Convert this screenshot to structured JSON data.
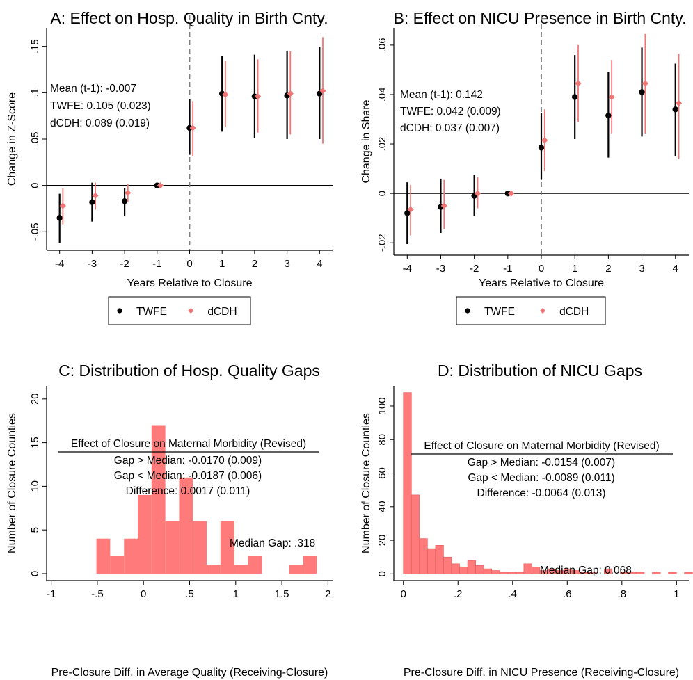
{
  "colors": {
    "twfe": "#000000",
    "dcdh": "#f07676",
    "hist_fill": "#ff7b7b",
    "hist_edge": "#e05a5a",
    "dashed": "#7f7f7f"
  },
  "chart_data": [
    {
      "panel": "A",
      "type": "scatter",
      "title": "A: Effect on Hosp. Quality in Birth Cnty.",
      "xlabel": "Years Relative to Closure",
      "ylabel": "Change in Z-Score",
      "x_ticks": [
        "-4",
        "-3",
        "-2",
        "-1",
        "0",
        "1",
        "2",
        "3",
        "4"
      ],
      "y_ticks": [
        {
          "value": -0.05,
          "label": "-.05"
        },
        {
          "value": 0,
          "label": "0"
        },
        {
          "value": 0.05,
          "label": ".05"
        },
        {
          "value": 0.1,
          "label": ".1"
        },
        {
          "value": 0.15,
          "label": ".15"
        }
      ],
      "xlim": [
        -4.4,
        4.4
      ],
      "ylim": [
        -0.07,
        0.17
      ],
      "event_line_x": 0,
      "annotations": [
        "Mean (t-1): -0.007",
        "TWFE: 0.105 (0.023)",
        "dCDH: 0.089 (0.019)"
      ],
      "legend": {
        "placement": "bottom",
        "entries": [
          "TWFE",
          "dCDH"
        ]
      },
      "series": [
        {
          "name": "TWFE",
          "x": [
            -4,
            -3,
            -2,
            -1,
            0,
            1,
            2,
            3,
            4
          ],
          "y": [
            -0.035,
            -0.018,
            -0.017,
            0,
            0.062,
            0.099,
            0.096,
            0.097,
            0.099
          ],
          "ci_low": [
            -0.062,
            -0.039,
            -0.033,
            0,
            0.033,
            0.058,
            0.051,
            0.05,
            0.05
          ],
          "ci_high": [
            -0.009,
            0.003,
            -0.003,
            0,
            0.093,
            0.14,
            0.141,
            0.145,
            0.149
          ]
        },
        {
          "name": "dCDH",
          "x": [
            -3.9,
            -2.9,
            -1.9,
            -0.9,
            0.1,
            1.1,
            2.1,
            3.1,
            4.1
          ],
          "y": [
            -0.022,
            -0.011,
            -0.008,
            0,
            0.062,
            0.098,
            0.096,
            0.099,
            0.102
          ],
          "ci_low": [
            -0.042,
            -0.026,
            -0.018,
            0,
            0.032,
            0.063,
            0.057,
            0.055,
            0.045
          ],
          "ci_high": [
            -0.003,
            0.003,
            0.002,
            0,
            0.091,
            0.134,
            0.136,
            0.145,
            0.16
          ]
        }
      ]
    },
    {
      "panel": "B",
      "type": "scatter",
      "title": "B: Effect on NICU Presence in Birth Cnty.",
      "xlabel": "Years Relative to Closure",
      "ylabel": "Change in Share",
      "x_ticks": [
        "-4",
        "-3",
        "-2",
        "-1",
        "0",
        "1",
        "2",
        "3",
        "4"
      ],
      "y_ticks": [
        {
          "value": -0.02,
          "label": "-.02"
        },
        {
          "value": 0,
          "label": "0"
        },
        {
          "value": 0.02,
          "label": ".02"
        },
        {
          "value": 0.04,
          "label": ".04"
        },
        {
          "value": 0.06,
          "label": ".06"
        }
      ],
      "xlim": [
        -4.4,
        4.4
      ],
      "ylim": [
        -0.025,
        0.067
      ],
      "event_line_x": 0,
      "annotations": [
        "Mean (t-1): 0.142",
        "TWFE: 0.042 (0.009)",
        "dCDH: 0.037 (0.007)"
      ],
      "legend": {
        "placement": "bottom",
        "entries": [
          "TWFE",
          "dCDH"
        ]
      },
      "series": [
        {
          "name": "TWFE",
          "x": [
            -4,
            -3,
            -2,
            -1,
            0,
            1,
            2,
            3,
            4
          ],
          "y": [
            -0.008,
            -0.0055,
            -0.001,
            0,
            0.0185,
            0.039,
            0.0315,
            0.041,
            0.034
          ],
          "ci_low": [
            -0.0205,
            -0.016,
            -0.009,
            0,
            0.0055,
            0.022,
            0.0145,
            0.023,
            0.015
          ],
          "ci_high": [
            0.0045,
            0.006,
            0.0075,
            0,
            0.0325,
            0.056,
            0.049,
            0.059,
            0.0525
          ]
        },
        {
          "name": "dCDH",
          "x": [
            -3.9,
            -2.9,
            -1.9,
            -0.9,
            0.1,
            1.1,
            2.1,
            3.1,
            4.1
          ],
          "y": [
            -0.0065,
            -0.005,
            0,
            0,
            0.0215,
            0.0445,
            0.039,
            0.0445,
            0.0365
          ],
          "ci_low": [
            -0.017,
            -0.0145,
            -0.006,
            0,
            0.009,
            0.029,
            0.024,
            0.024,
            0.014
          ],
          "ci_high": [
            0.0035,
            0.0055,
            0.0065,
            0,
            0.034,
            0.06,
            0.054,
            0.0645,
            0.0565
          ]
        }
      ]
    },
    {
      "panel": "C",
      "type": "bar",
      "title": "C: Distribution of Hosp. Quality Gaps",
      "xlabel": "Pre-Closure Diff. in Average Quality (Receiving-Closure)",
      "ylabel": "Number of Closure Counties",
      "x_ticks": [
        {
          "value": -1,
          "label": "-1"
        },
        {
          "value": -0.5,
          "label": "-.5"
        },
        {
          "value": 0,
          "label": "0"
        },
        {
          "value": 0.5,
          "label": ".5"
        },
        {
          "value": 1,
          "label": "1"
        },
        {
          "value": 1.5,
          "label": "1.5"
        },
        {
          "value": 2,
          "label": "2"
        }
      ],
      "y_ticks": [
        {
          "value": 0,
          "label": "0"
        },
        {
          "value": 5,
          "label": "5"
        },
        {
          "value": 10,
          "label": "10"
        },
        {
          "value": 15,
          "label": "15"
        },
        {
          "value": 20,
          "label": "20"
        }
      ],
      "xlim": [
        -1.05,
        2.05
      ],
      "ylim": [
        -0.8,
        21.5
      ],
      "bin_start": -0.51,
      "bin_width": 0.1494,
      "counts": [
        4,
        2,
        4,
        9,
        17,
        6,
        11,
        6,
        1,
        6,
        1,
        2,
        0,
        0,
        1,
        2
      ],
      "box_title": "Effect of Closure on Maternal Morbidity (Revised)",
      "box_lines": [
        "Gap > Median: -0.0170 (0.009)",
        "Gap < Median: -0.0187 (0.006)",
        "Difference: 0.0017 (0.011)"
      ],
      "median_label": "Median Gap: .318"
    },
    {
      "panel": "D",
      "type": "bar",
      "title": "D: Distribution of NICU Gaps",
      "xlabel": "Pre-Closure Diff. in NICU Presence (Receiving-Closure)",
      "ylabel": "Number of Closure Counties",
      "x_ticks": [
        {
          "value": 0,
          "label": "0"
        },
        {
          "value": 0.2,
          "label": ".2"
        },
        {
          "value": 0.4,
          "label": ".4"
        },
        {
          "value": 0.6,
          "label": ".6"
        },
        {
          "value": 0.8,
          "label": ".8"
        },
        {
          "value": 1,
          "label": "1"
        }
      ],
      "y_ticks": [
        {
          "value": 0,
          "label": "0"
        },
        {
          "value": 20,
          "label": "20"
        },
        {
          "value": 40,
          "label": "40"
        },
        {
          "value": 60,
          "label": "60"
        },
        {
          "value": 80,
          "label": "80"
        },
        {
          "value": 100,
          "label": "100"
        }
      ],
      "xlim": [
        -0.035,
        1.045
      ],
      "ylim": [
        -4,
        112
      ],
      "bin_start": 0,
      "bin_width": 0.0294,
      "counts": [
        108,
        47,
        21,
        15,
        17,
        10,
        6,
        4,
        8,
        5,
        3,
        2,
        1,
        1,
        1,
        6,
        4,
        2,
        3,
        2,
        3,
        2,
        1,
        1,
        0,
        3,
        0,
        1,
        1,
        1,
        0,
        1,
        0,
        1,
        0,
        1,
        1,
        1,
        0,
        1,
        0,
        0,
        0,
        0,
        0,
        0,
        0,
        0,
        0,
        0,
        0,
        0,
        0,
        0,
        0,
        0
      ],
      "counts_note": "",
      "box_title": "Effect of Closure on Maternal Morbidity (Revised)",
      "box_lines": [
        "Gap > Median: -0.0154 (0.007)",
        "Gap < Median: -0.0089 (0.011)",
        "Difference: -0.0064 (0.013)"
      ],
      "median_label": "Median Gap: 0.068"
    }
  ]
}
